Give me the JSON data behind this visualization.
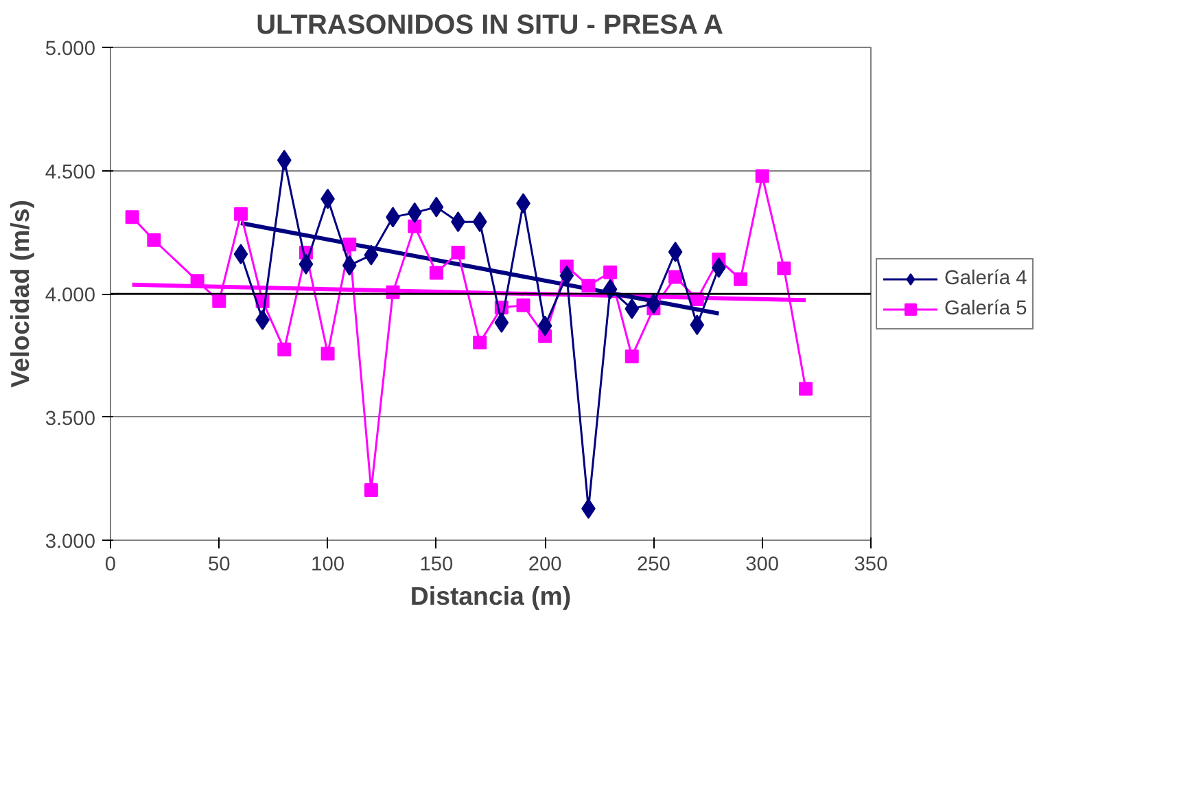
{
  "chart_data": {
    "type": "line",
    "title": "ULTRASONIDOS IN SITU - PRESA A",
    "xlabel": "Distancia (m)",
    "ylabel": "Velocidad (m/s)",
    "xlim": [
      0,
      350
    ],
    "xticks": [
      0,
      50,
      100,
      150,
      200,
      250,
      300,
      350
    ],
    "ylim": [
      3000,
      5000
    ],
    "yticks": [
      {
        "value": 3000,
        "label": "3.000"
      },
      {
        "value": 3500,
        "label": "3.500"
      },
      {
        "value": 4000,
        "label": "4.000"
      },
      {
        "value": 4500,
        "label": "4.500"
      },
      {
        "value": 5000,
        "label": "5.000"
      }
    ],
    "grid": "y",
    "legend": "right",
    "line_style": "solid",
    "ref_lines": [
      {
        "axis": "y",
        "value": 4000,
        "color": "#000000"
      }
    ],
    "series": [
      {
        "name": "Galería 4",
        "color": "#000080",
        "marker": "diamond",
        "x": [
          60,
          70,
          80,
          90,
          100,
          110,
          120,
          130,
          140,
          150,
          160,
          170,
          180,
          190,
          200,
          210,
          220,
          230,
          240,
          250,
          260,
          270,
          280
        ],
        "values": [
          4161,
          3894,
          4542,
          4120,
          4385,
          4115,
          4157,
          4311,
          4329,
          4352,
          4292,
          4292,
          3883,
          4367,
          3870,
          4074,
          3128,
          4018,
          3939,
          3960,
          4170,
          3874,
          4106
        ]
      },
      {
        "name": "Galería 5",
        "color": "#ff00ff",
        "marker": "square",
        "x": [
          10,
          20,
          40,
          50,
          60,
          70,
          80,
          90,
          100,
          110,
          120,
          130,
          140,
          150,
          160,
          170,
          180,
          190,
          200,
          210,
          220,
          230,
          240,
          250,
          260,
          270,
          280,
          290,
          300,
          310,
          320
        ],
        "values": [
          4311,
          4218,
          4052,
          3970,
          4324,
          3970,
          3774,
          4167,
          3757,
          4200,
          3203,
          4006,
          4274,
          4085,
          4167,
          3802,
          3944,
          3953,
          3828,
          4111,
          4033,
          4087,
          3746,
          3941,
          4068,
          3978,
          4139,
          4059,
          4478,
          4103,
          3614
        ]
      },
      {
        "color": "#000080",
        "marker": "none",
        "x": [
          60,
          280
        ],
        "values": [
          4287,
          3920
        ]
      },
      {
        "color": "#ff00ff",
        "marker": "none",
        "x": [
          10,
          320
        ],
        "values": [
          4037,
          3974
        ]
      }
    ]
  }
}
